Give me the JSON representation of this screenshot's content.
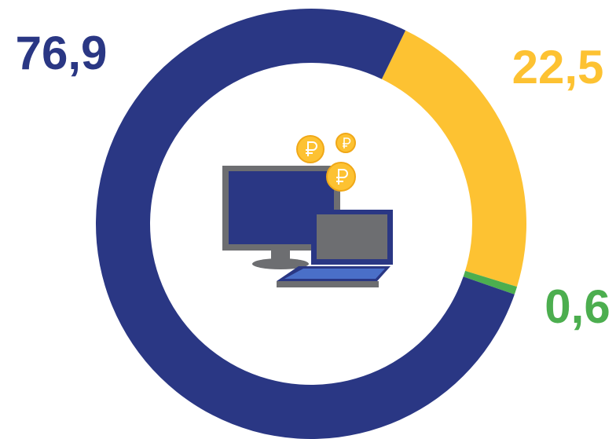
{
  "chart_data": {
    "type": "donut",
    "categories": [
      null,
      null,
      null
    ],
    "values": [
      22.5,
      0.6,
      76.9
    ],
    "value_labels": [
      "22,5",
      "0,6",
      "76,9"
    ],
    "colors": [
      "#fdc232",
      "#4cae4f",
      "#2a3784"
    ]
  }
}
